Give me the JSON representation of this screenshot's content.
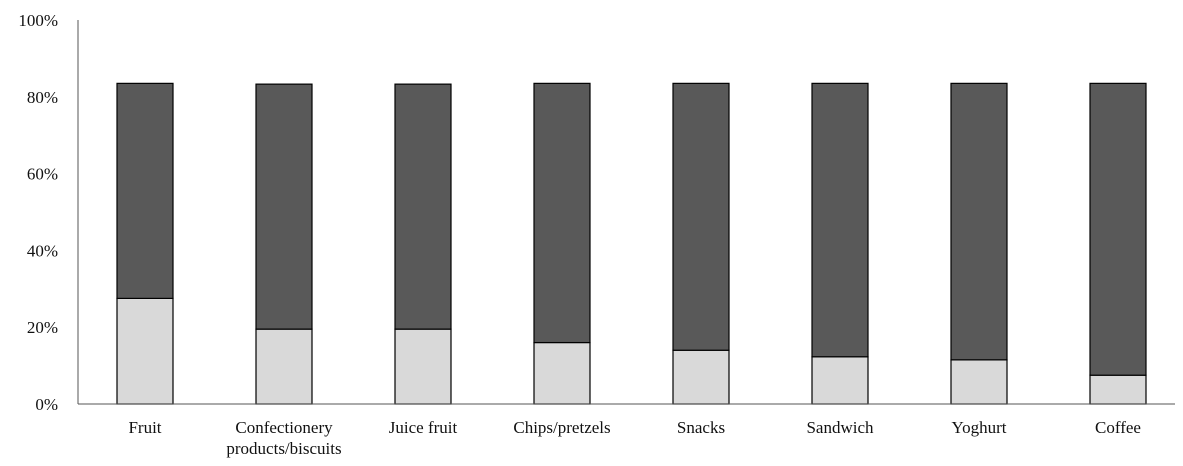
{
  "chart_data": {
    "type": "bar",
    "stacked": true,
    "categories": [
      "Fruit",
      "Confectionery products/biscuits",
      "Juice fruit",
      "Chips/pretzels",
      "Snacks",
      "Sandwich",
      "Yoghurt",
      "Coffee"
    ],
    "category_label_lines": [
      [
        "Fruit"
      ],
      [
        "Confectionery",
        "products/biscuits"
      ],
      [
        "Juice fruit"
      ],
      [
        "Chips/pretzels"
      ],
      [
        "Snacks"
      ],
      [
        "Sandwich"
      ],
      [
        "Yoghurt"
      ],
      [
        "Coffee"
      ]
    ],
    "series": [
      {
        "values": [
          27.5,
          19.5,
          19.5,
          16,
          14,
          12.3,
          11.5,
          7.5
        ],
        "color": "#d9d9d9"
      },
      {
        "values": [
          56,
          63.8,
          63.8,
          67.5,
          69.5,
          71.2,
          72,
          76
        ],
        "color": "#595959"
      }
    ],
    "ylim": [
      0,
      100
    ],
    "yticks": [
      "0%",
      "20%",
      "40%",
      "60%",
      "80%",
      "100%"
    ],
    "ytick_values": [
      0,
      20,
      40,
      60,
      80,
      100
    ],
    "grid": false,
    "legend": "none",
    "title": "",
    "xlabel": "",
    "ylabel": ""
  }
}
